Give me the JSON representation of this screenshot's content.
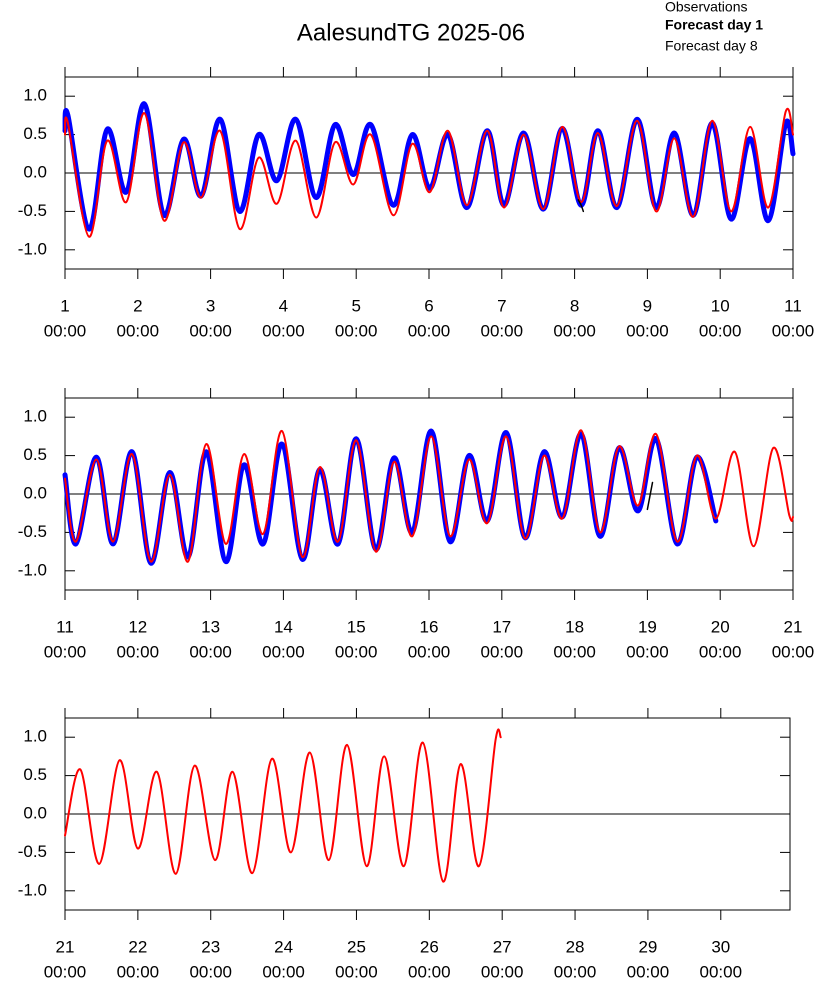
{
  "chart_data": [
    {
      "type": "line",
      "title": "AalesundTG 2025-06",
      "xtick_time": "00:00",
      "xlim": [
        1,
        11
      ],
      "xticks": [
        1,
        2,
        3,
        4,
        5,
        6,
        7,
        8,
        9,
        10,
        11
      ],
      "ylim": [
        -1.25,
        1.25
      ],
      "yticks": [
        {
          "value": -1,
          "label": "-1.0"
        },
        {
          "value": -0.5,
          "label": "-0.5"
        },
        {
          "value": 0,
          "label": "0.0"
        },
        {
          "value": 0.5,
          "label": "0.5"
        },
        {
          "value": 1,
          "label": "1.0"
        }
      ],
      "x": [
        1.0,
        1.04,
        1.33,
        1.58,
        1.84,
        2.09,
        2.36,
        2.63,
        2.87,
        3.13,
        3.4,
        3.66,
        3.91,
        4.17,
        4.45,
        4.71,
        4.96,
        5.2,
        5.51,
        5.77,
        6.01,
        6.26,
        6.52,
        6.8,
        7.03,
        7.3,
        7.57,
        7.83,
        8.09,
        8.32,
        8.58,
        8.86,
        9.12,
        9.37,
        9.63,
        9.89,
        10.15,
        10.41,
        10.66,
        10.9,
        11.0
      ],
      "series": [
        {
          "name": "Observations",
          "color": "#000000",
          "x": [
            8.05,
            8.09,
            8.12
          ],
          "values": [
            -0.35,
            -0.42,
            -0.5
          ]
        },
        {
          "name": "Forecast day 1",
          "color": "#0000ff",
          "values": [
            0.55,
            0.75,
            -0.73,
            0.57,
            -0.25,
            0.9,
            -0.55,
            0.44,
            -0.3,
            0.7,
            -0.5,
            0.5,
            -0.1,
            0.7,
            -0.32,
            0.63,
            -0.02,
            0.63,
            -0.42,
            0.5,
            -0.2,
            0.5,
            -0.45,
            0.55,
            -0.42,
            0.52,
            -0.47,
            0.58,
            -0.42,
            0.55,
            -0.45,
            0.7,
            -0.45,
            0.52,
            -0.55,
            0.65,
            -0.6,
            0.45,
            -0.62,
            0.65,
            0.25
          ]
        },
        {
          "name": "Forecast day 8",
          "color": "#ff0000",
          "values": [
            0.5,
            0.65,
            -0.83,
            0.42,
            -0.38,
            0.78,
            -0.62,
            0.4,
            -0.32,
            0.55,
            -0.73,
            0.2,
            -0.4,
            0.42,
            -0.58,
            0.4,
            -0.15,
            0.5,
            -0.55,
            0.38,
            -0.25,
            0.55,
            -0.42,
            0.55,
            -0.45,
            0.5,
            -0.47,
            0.6,
            -0.38,
            0.52,
            -0.43,
            0.68,
            -0.5,
            0.45,
            -0.57,
            0.68,
            -0.5,
            0.6,
            -0.45,
            0.8,
            0.5
          ]
        }
      ]
    },
    {
      "type": "line",
      "xtick_time": "00:00",
      "xlim": [
        11,
        21
      ],
      "xticks": [
        11,
        12,
        13,
        14,
        15,
        16,
        17,
        18,
        19,
        20,
        21
      ],
      "ylim": [
        -1.25,
        1.25
      ],
      "yticks": [
        {
          "value": -1,
          "label": "-1.0"
        },
        {
          "value": -0.5,
          "label": "-0.5"
        },
        {
          "value": 0,
          "label": "0.0"
        },
        {
          "value": 0.5,
          "label": "0.5"
        },
        {
          "value": 1,
          "label": "1.0"
        }
      ],
      "x": [
        11.0,
        11.15,
        11.43,
        11.66,
        11.92,
        12.18,
        12.44,
        12.69,
        12.94,
        13.21,
        13.46,
        13.72,
        13.98,
        14.26,
        14.5,
        14.75,
        15.0,
        15.27,
        15.52,
        15.77,
        16.03,
        16.29,
        16.55,
        16.8,
        17.06,
        17.32,
        17.58,
        17.83,
        18.09,
        18.35,
        18.61,
        18.87,
        19.12,
        19.41,
        19.68,
        19.94,
        20.2,
        20.46,
        20.73,
        20.95,
        21.0
      ],
      "series": [
        {
          "name": "Observations",
          "color": "#000000",
          "x": [
            19.0,
            19.04,
            19.07
          ],
          "values": [
            -0.2,
            0.0,
            0.15
          ]
        },
        {
          "name": "Forecast day 1",
          "color": "#0000ff",
          "values": [
            0.25,
            -0.65,
            0.48,
            -0.65,
            0.55,
            -0.9,
            0.28,
            -0.82,
            0.55,
            -0.88,
            0.38,
            -0.65,
            0.65,
            -0.85,
            0.32,
            -0.65,
            0.72,
            -0.72,
            0.47,
            -0.5,
            0.82,
            -0.62,
            0.5,
            -0.35,
            0.8,
            -0.57,
            0.55,
            -0.3,
            0.78,
            -0.55,
            0.6,
            -0.22,
            0.72,
            -0.65,
            0.48,
            -0.35,
            null,
            null,
            null,
            null,
            null
          ]
        },
        {
          "name": "Forecast day 8",
          "color": "#ff0000",
          "values": [
            0.2,
            -0.62,
            0.45,
            -0.62,
            0.52,
            -0.88,
            0.25,
            -0.88,
            0.65,
            -0.65,
            0.52,
            -0.52,
            0.82,
            -0.82,
            0.35,
            -0.62,
            0.7,
            -0.75,
            0.42,
            -0.55,
            0.75,
            -0.55,
            0.45,
            -0.38,
            0.75,
            -0.58,
            0.5,
            -0.32,
            0.83,
            -0.5,
            0.62,
            -0.15,
            0.78,
            -0.62,
            0.5,
            -0.32,
            0.55,
            -0.68,
            0.6,
            -0.28,
            -0.3
          ]
        }
      ]
    },
    {
      "type": "line",
      "xtick_time": "00:00",
      "xlim": [
        21,
        30.95
      ],
      "xticks": [
        21,
        22,
        23,
        24,
        25,
        26,
        27,
        28,
        29,
        30
      ],
      "ylim": [
        -1.25,
        1.25
      ],
      "yticks": [
        {
          "value": -1,
          "label": "-1.0"
        },
        {
          "value": -0.5,
          "label": "-0.5"
        },
        {
          "value": 0,
          "label": "0.0"
        },
        {
          "value": 0.5,
          "label": "0.5"
        },
        {
          "value": 1,
          "label": "1.0"
        }
      ],
      "x": [
        21.0,
        21.21,
        21.47,
        21.75,
        22.0,
        22.26,
        22.52,
        22.78,
        23.06,
        23.3,
        23.57,
        23.84,
        24.1,
        24.36,
        24.62,
        24.87,
        25.14,
        25.38,
        25.65,
        25.91,
        26.19,
        26.43,
        26.68,
        26.91,
        26.98
      ],
      "series": [
        {
          "name": "Forecast day 8",
          "color": "#ff0000",
          "values": [
            -0.28,
            0.58,
            -0.65,
            0.7,
            -0.45,
            0.55,
            -0.78,
            0.63,
            -0.6,
            0.55,
            -0.77,
            0.72,
            -0.5,
            0.8,
            -0.6,
            0.9,
            -0.68,
            0.75,
            -0.68,
            0.93,
            -0.88,
            0.65,
            -0.68,
            0.97,
            1.0
          ]
        }
      ]
    }
  ]
}
